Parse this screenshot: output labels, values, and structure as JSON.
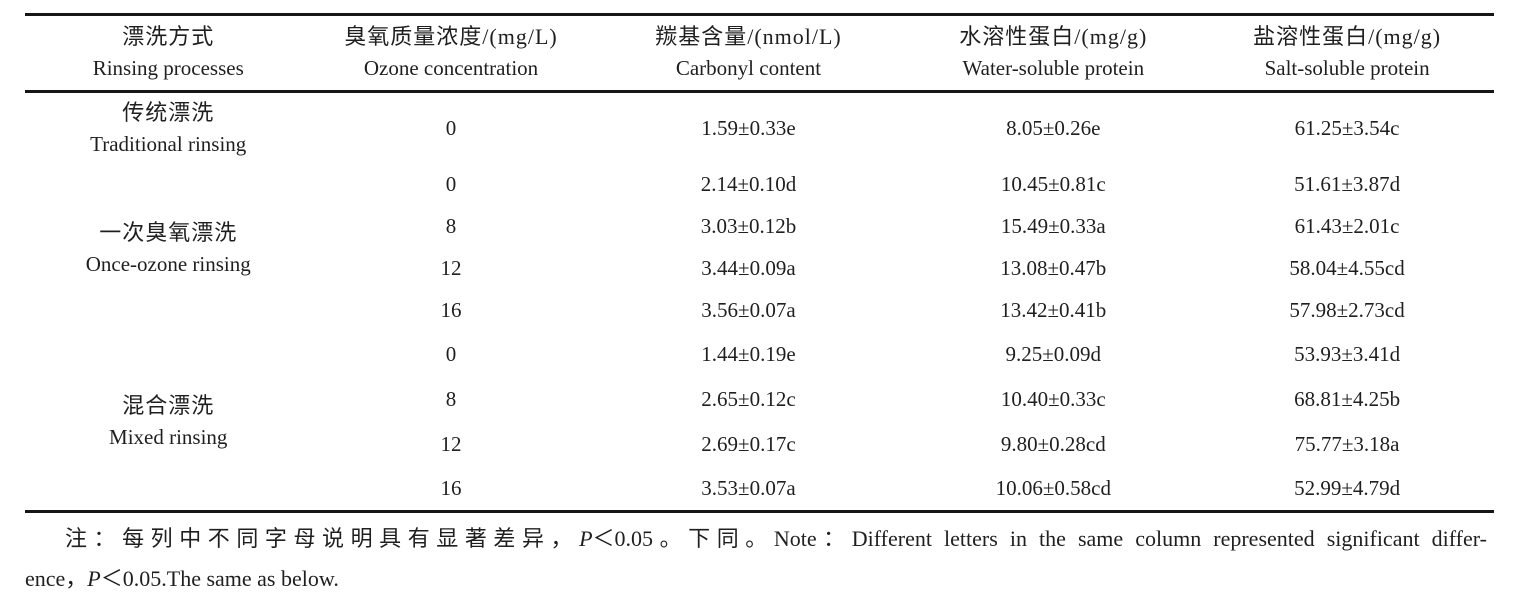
{
  "colors": {
    "background": "#ffffff",
    "text": "#1f1f1f",
    "rule": "#161616"
  },
  "table": {
    "headers": [
      {
        "zh": "漂洗方式",
        "en": "Rinsing processes"
      },
      {
        "zh": "臭氧质量浓度/(mg/L)",
        "en": "Ozone concentration"
      },
      {
        "zh": "羰基含量/(nmol/L)",
        "en": "Carbonyl content"
      },
      {
        "zh": "水溶性蛋白/(mg/g)",
        "en": "Water-soluble protein"
      },
      {
        "zh": "盐溶性蛋白/(mg/g)",
        "en": "Salt-soluble protein"
      }
    ],
    "groups": [
      {
        "process_zh": "传统漂洗",
        "process_en": "Traditional rinsing",
        "rows": [
          {
            "ozone": "0",
            "carbonyl": "1.59±0.33e",
            "water_protein": "8.05±0.26e",
            "salt_protein": "61.25±3.54c"
          }
        ]
      },
      {
        "process_zh": "一次臭氧漂洗",
        "process_en": "Once-ozone rinsing",
        "rows": [
          {
            "ozone": "0",
            "carbonyl": "2.14±0.10d",
            "water_protein": "10.45±0.81c",
            "salt_protein": "51.61±3.87d"
          },
          {
            "ozone": "8",
            "carbonyl": "3.03±0.12b",
            "water_protein": "15.49±0.33a",
            "salt_protein": "61.43±2.01c"
          },
          {
            "ozone": "12",
            "carbonyl": "3.44±0.09a",
            "water_protein": "13.08±0.47b",
            "salt_protein": "58.04±4.55cd"
          },
          {
            "ozone": "16",
            "carbonyl": "3.56±0.07a",
            "water_protein": "13.42±0.41b",
            "salt_protein": "57.98±2.73cd"
          }
        ]
      },
      {
        "process_zh": "混合漂洗",
        "process_en": "Mixed rinsing",
        "rows": [
          {
            "ozone": "0",
            "carbonyl": "1.44±0.19e",
            "water_protein": "9.25±0.09d",
            "salt_protein": "53.93±3.41d"
          },
          {
            "ozone": "8",
            "carbonyl": "2.65±0.12c",
            "water_protein": "10.40±0.33c",
            "salt_protein": "68.81±4.25b"
          },
          {
            "ozone": "12",
            "carbonyl": "2.69±0.17c",
            "water_protein": "9.80±0.28cd",
            "salt_protein": "75.77±3.18a"
          },
          {
            "ozone": "16",
            "carbonyl": "3.53±0.07a",
            "water_protein": "10.06±0.58cd",
            "salt_protein": "52.99±4.79d"
          }
        ]
      }
    ]
  },
  "note": {
    "line1_seg1": "注：每列中不同字母说明具有显著差异，",
    "line1_p": "P",
    "line1_seg2": "＜0.05。下同。Note：Different letters in the same column represented significant differ-",
    "line2_seg1": "ence，",
    "line2_p": "P",
    "line2_seg2": "＜0.05.The same as below."
  }
}
